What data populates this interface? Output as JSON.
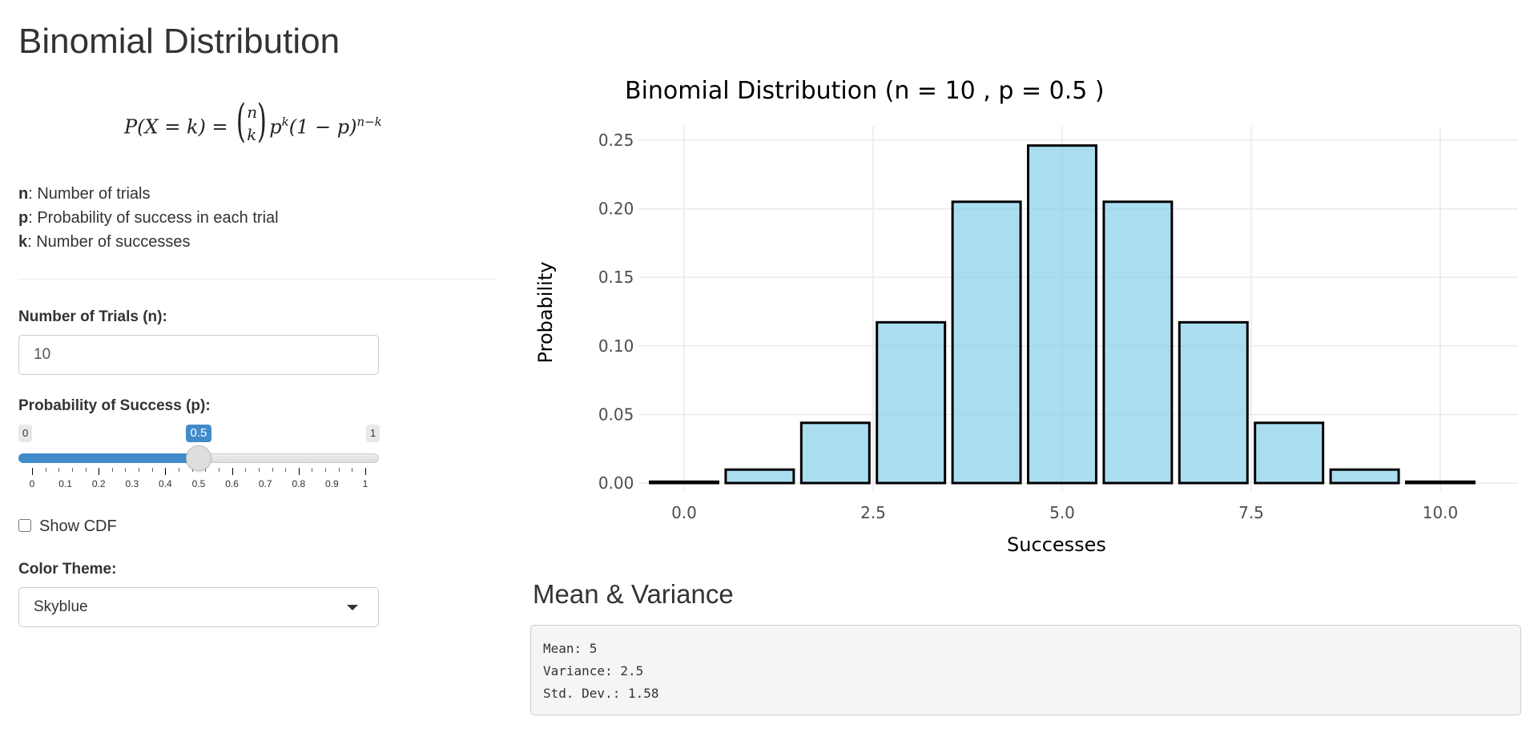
{
  "page": {
    "title": "Binomial Distribution"
  },
  "formula": {
    "lhs": "P(X = k) =",
    "binom_top": "n",
    "binom_bottom": "k",
    "term_p": "p",
    "term_p_exp": "k",
    "term_q": "(1 − p)",
    "term_q_exp": "n−k"
  },
  "definitions": [
    {
      "symbol": "n",
      "text": ": Number of trials"
    },
    {
      "symbol": "p",
      "text": ": Probability of success in each trial"
    },
    {
      "symbol": "k",
      "text": ": Number of successes"
    }
  ],
  "controls": {
    "trials": {
      "label": "Number of Trials (n):",
      "value": "10"
    },
    "probability": {
      "label": "Probability of Success (p):",
      "min": "0",
      "max": "1",
      "value": 0.5,
      "value_label": "0.5",
      "tick_labels": [
        "0",
        "0.1",
        "0.2",
        "0.3",
        "0.4",
        "0.5",
        "0.6",
        "0.7",
        "0.8",
        "0.9",
        "1"
      ]
    },
    "show_cdf": {
      "label": "Show CDF",
      "checked": false
    },
    "color_theme": {
      "label": "Color Theme:",
      "selected": "Skyblue"
    }
  },
  "colors": {
    "accent": "#428bca",
    "bar_fill": "#87ceeb",
    "bar_stroke": "#000000",
    "grid": "#ebebeb"
  },
  "chart_data": {
    "type": "bar",
    "title": "Binomial Distribution (n = 10 , p = 0.5 )",
    "xlabel": "Successes",
    "ylabel": "Probability",
    "x": [
      0,
      1,
      2,
      3,
      4,
      5,
      6,
      7,
      8,
      9,
      10
    ],
    "values": [
      0.001,
      0.0098,
      0.0439,
      0.1172,
      0.2051,
      0.2461,
      0.2051,
      0.1172,
      0.0439,
      0.0098,
      0.001
    ],
    "xlim": [
      -0.55,
      11.0
    ],
    "ylim": [
      0,
      0.26
    ],
    "xticks": [
      0,
      2.5,
      5,
      7.5,
      10
    ],
    "xtick_labels": [
      "0.0",
      "2.5",
      "5.0",
      "7.5",
      "10.0"
    ],
    "yticks": [
      0,
      0.05,
      0.1,
      0.15,
      0.2,
      0.25
    ],
    "ytick_labels": [
      "0.00",
      "0.05",
      "0.10",
      "0.15",
      "0.20",
      "0.25"
    ],
    "grid": true,
    "legend": "none"
  },
  "summary": {
    "title": "Mean & Variance",
    "lines": [
      "Mean: 5",
      "Variance: 2.5",
      "Std. Dev.: 1.58"
    ]
  }
}
